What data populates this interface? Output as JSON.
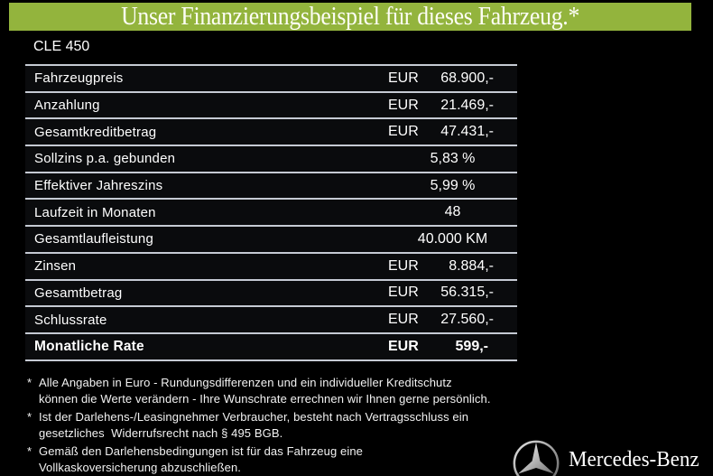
{
  "header": {
    "title": "Unser Finanzierungsbeispiel für dieses Fahrzeug.*",
    "background_color": "#93b43d",
    "text_color": "#fdfdf5"
  },
  "vehicle": {
    "model": "CLE 450"
  },
  "table": {
    "rows": [
      {
        "label": "Fahrzeugpreis",
        "currency": "EUR",
        "value": "68.900,-",
        "align": "right",
        "bold": false
      },
      {
        "label": "Anzahlung",
        "currency": "EUR",
        "value": "21.469,-",
        "align": "right",
        "bold": false
      },
      {
        "label": "Gesamtkreditbetrag",
        "currency": "EUR",
        "value": "47.431,-",
        "align": "right",
        "bold": false
      },
      {
        "label": "Sollzins p.a. gebunden",
        "currency": "",
        "value": "5,83 %",
        "align": "center",
        "bold": false
      },
      {
        "label": "Effektiver Jahreszins",
        "currency": "",
        "value": "5,99 %",
        "align": "center",
        "bold": false
      },
      {
        "label": "Laufzeit in Monaten",
        "currency": "",
        "value": "48",
        "align": "center",
        "bold": false
      },
      {
        "label": "Gesamtlaufleistung",
        "currency": "",
        "value": "40.000 KM",
        "align": "center",
        "bold": false
      },
      {
        "label": "Zinsen",
        "currency": "EUR",
        "value": "8.884,-",
        "align": "right",
        "bold": false
      },
      {
        "label": "Gesamtbetrag",
        "currency": "EUR",
        "value": "56.315,-",
        "align": "right",
        "bold": false
      },
      {
        "label": "Schlussrate",
        "currency": "EUR",
        "value": "27.560,-",
        "align": "right",
        "bold": false
      },
      {
        "label": "Monatliche Rate",
        "currency": "EUR",
        "value": "599,-",
        "align": "right",
        "bold": true
      }
    ]
  },
  "footnotes": [
    {
      "marker": "*",
      "text": "Alle Angaben in Euro - Rundungsdifferenzen und ein individueller Kreditschutz\nkönnen die Werte verändern - Ihre Wunschrate errechnen wir Ihnen gerne persönlich."
    },
    {
      "marker": "*",
      "text": "Ist der Darlehens-/Leasingnehmer Verbraucher, besteht nach Vertragsschluss ein\ngesetzliches  Widerrufsrecht nach § 495 BGB."
    },
    {
      "marker": "*",
      "text": "Gemäß den Darlehensbedingungen ist für das Fahrzeug eine\nVollkaskoversicherung abzuschließen."
    }
  ],
  "brand": {
    "wordmark": "Mercedes-Benz",
    "logo_icon": "mercedes-star-icon"
  },
  "colors": {
    "accent_green": "#93b43d",
    "background": "#000000",
    "divider": "#c5cad3",
    "text": "#ffffff",
    "logo_silver": "#b5b5b5"
  }
}
